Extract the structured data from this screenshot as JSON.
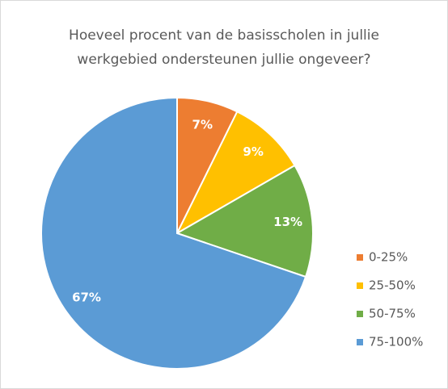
{
  "chart_data": {
    "type": "pie",
    "title": "Hoeveel procent van de basisscholen in jullie werkgebied ondersteunen jullie ongeveer?",
    "categories": [
      "0-25%",
      "25-50%",
      "50-75%",
      "75-100%"
    ],
    "values": [
      7,
      9,
      13,
      67
    ],
    "value_labels": [
      "7%",
      "9%",
      "13%",
      "67%"
    ],
    "colors": [
      "#ed7d31",
      "#ffc000",
      "#70ad47",
      "#5b9bd5"
    ],
    "legend": "right"
  }
}
